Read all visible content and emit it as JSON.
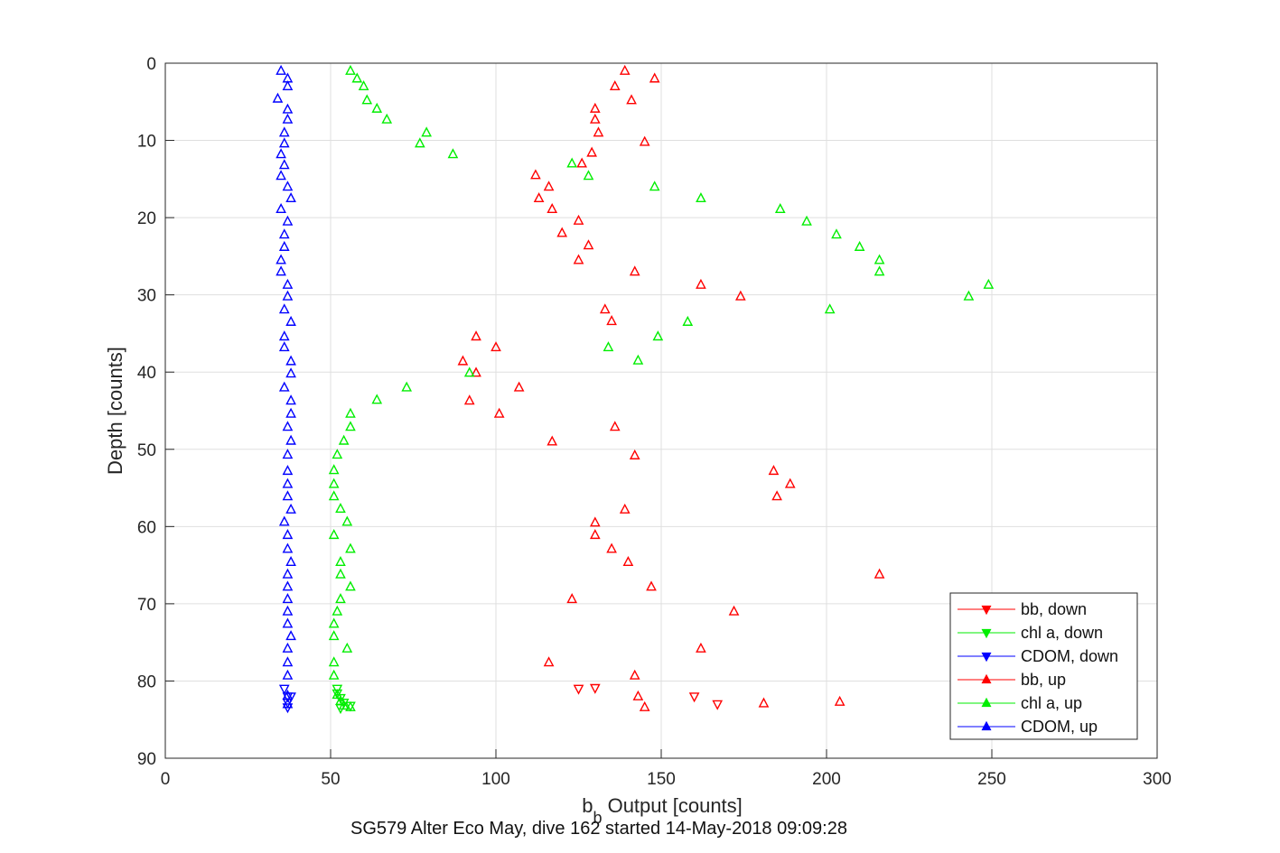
{
  "chart_data": {
    "type": "scatter",
    "xlabel_main": "b",
    "xlabel_sub": "b",
    "xlabel_rest": " Output [counts]",
    "ylabel": "Depth [counts]",
    "caption": "SG579 Alter Eco May, dive 162 started 14-May-2018 09:09:28",
    "xlim": [
      0,
      300
    ],
    "ylim": [
      0,
      90
    ],
    "y_reversed": true,
    "grid": true,
    "legend_position": "bottom-right",
    "x_ticks": [
      0,
      50,
      100,
      150,
      200,
      250,
      300
    ],
    "y_ticks": [
      0,
      10,
      20,
      30,
      40,
      50,
      60,
      70,
      80,
      90
    ],
    "series": [
      {
        "name": "bb, down",
        "color": "#ff0000",
        "marker": "triangle-down",
        "points": [
          [
            125,
            81.0
          ],
          [
            130,
            80.9
          ],
          [
            160,
            82.0
          ],
          [
            167,
            83.0
          ]
        ]
      },
      {
        "name": "chl a, down",
        "color": "#00ee00",
        "marker": "triangle-down",
        "points": [
          [
            52,
            81.0
          ],
          [
            52,
            81.6
          ],
          [
            53,
            82.2
          ],
          [
            54,
            82.8
          ],
          [
            56,
            83.2
          ],
          [
            53,
            83.5
          ]
        ]
      },
      {
        "name": "CDOM, down",
        "color": "#0000ff",
        "marker": "triangle-down",
        "points": [
          [
            36,
            81.0
          ],
          [
            37,
            82.0
          ],
          [
            38,
            82.0
          ],
          [
            37,
            82.8
          ],
          [
            37,
            83.4
          ]
        ]
      },
      {
        "name": "bb, up",
        "color": "#ff0000",
        "marker": "triangle-up",
        "points": [
          [
            139,
            1.0
          ],
          [
            148,
            2.0
          ],
          [
            136,
            3.0
          ],
          [
            141,
            4.8
          ],
          [
            130,
            5.9
          ],
          [
            130,
            7.3
          ],
          [
            131,
            9.0
          ],
          [
            145,
            10.2
          ],
          [
            129,
            11.6
          ],
          [
            126,
            13.0
          ],
          [
            112,
            14.5
          ],
          [
            116,
            16.0
          ],
          [
            113,
            17.5
          ],
          [
            117,
            18.9
          ],
          [
            125,
            20.4
          ],
          [
            120,
            22.0
          ],
          [
            128,
            23.6
          ],
          [
            125,
            25.5
          ],
          [
            142,
            27.0
          ],
          [
            162,
            28.7
          ],
          [
            174,
            30.2
          ],
          [
            133,
            31.9
          ],
          [
            135,
            33.4
          ],
          [
            94,
            35.4
          ],
          [
            100,
            36.8
          ],
          [
            90,
            38.6
          ],
          [
            94,
            40.1
          ],
          [
            107,
            42.0
          ],
          [
            92,
            43.7
          ],
          [
            101,
            45.4
          ],
          [
            136,
            47.1
          ],
          [
            117,
            49.0
          ],
          [
            142,
            50.8
          ],
          [
            184,
            52.8
          ],
          [
            189,
            54.5
          ],
          [
            185,
            56.1
          ],
          [
            139,
            57.8
          ],
          [
            130,
            59.5
          ],
          [
            130,
            61.1
          ],
          [
            135,
            62.9
          ],
          [
            140,
            64.6
          ],
          [
            216,
            66.2
          ],
          [
            147,
            67.8
          ],
          [
            123,
            69.4
          ],
          [
            172,
            71.0
          ],
          [
            162,
            75.8
          ],
          [
            116,
            77.6
          ],
          [
            142,
            79.3
          ],
          [
            143,
            82.0
          ],
          [
            204,
            82.7
          ],
          [
            181,
            82.9
          ],
          [
            145,
            83.4
          ]
        ]
      },
      {
        "name": "chl a, up",
        "color": "#00ee00",
        "marker": "triangle-up",
        "points": [
          [
            56,
            1.0
          ],
          [
            58,
            2.0
          ],
          [
            60,
            3.0
          ],
          [
            61,
            4.8
          ],
          [
            64,
            5.9
          ],
          [
            67,
            7.3
          ],
          [
            79,
            9.0
          ],
          [
            77,
            10.4
          ],
          [
            87,
            11.8
          ],
          [
            123,
            13.0
          ],
          [
            128,
            14.6
          ],
          [
            148,
            16.0
          ],
          [
            162,
            17.5
          ],
          [
            186,
            18.9
          ],
          [
            194,
            20.5
          ],
          [
            203,
            22.2
          ],
          [
            210,
            23.8
          ],
          [
            216,
            25.5
          ],
          [
            216,
            27.0
          ],
          [
            249,
            28.7
          ],
          [
            243,
            30.2
          ],
          [
            201,
            31.9
          ],
          [
            158,
            33.5
          ],
          [
            149,
            35.4
          ],
          [
            134,
            36.8
          ],
          [
            143,
            38.5
          ],
          [
            92,
            40.1
          ],
          [
            73,
            42.0
          ],
          [
            64,
            43.6
          ],
          [
            56,
            45.4
          ],
          [
            56,
            47.1
          ],
          [
            54,
            48.9
          ],
          [
            52,
            50.7
          ],
          [
            51,
            52.7
          ],
          [
            51,
            54.5
          ],
          [
            51,
            56.1
          ],
          [
            53,
            57.7
          ],
          [
            55,
            59.4
          ],
          [
            51,
            61.1
          ],
          [
            56,
            62.9
          ],
          [
            53,
            64.6
          ],
          [
            53,
            66.2
          ],
          [
            56,
            67.8
          ],
          [
            53,
            69.4
          ],
          [
            52,
            71.0
          ],
          [
            51,
            72.6
          ],
          [
            51,
            74.2
          ],
          [
            55,
            75.8
          ],
          [
            51,
            77.6
          ],
          [
            51,
            79.3
          ],
          [
            52,
            81.8
          ],
          [
            53,
            82.6
          ],
          [
            54,
            83.2
          ],
          [
            56,
            83.4
          ]
        ]
      },
      {
        "name": "CDOM, up",
        "color": "#0000ff",
        "marker": "triangle-up",
        "points": [
          [
            35,
            1.0
          ],
          [
            37,
            2.0
          ],
          [
            37,
            3.0
          ],
          [
            34,
            4.6
          ],
          [
            37,
            6.0
          ],
          [
            37,
            7.3
          ],
          [
            36,
            9.0
          ],
          [
            36,
            10.4
          ],
          [
            35,
            11.8
          ],
          [
            36,
            13.2
          ],
          [
            35,
            14.6
          ],
          [
            37,
            16.0
          ],
          [
            38,
            17.5
          ],
          [
            35,
            18.9
          ],
          [
            37,
            20.5
          ],
          [
            36,
            22.2
          ],
          [
            36,
            23.8
          ],
          [
            35,
            25.5
          ],
          [
            35,
            27.0
          ],
          [
            37,
            28.7
          ],
          [
            37,
            30.2
          ],
          [
            36,
            31.9
          ],
          [
            38,
            33.5
          ],
          [
            36,
            35.4
          ],
          [
            36,
            36.8
          ],
          [
            38,
            38.6
          ],
          [
            38,
            40.2
          ],
          [
            36,
            42.0
          ],
          [
            38,
            43.7
          ],
          [
            38,
            45.4
          ],
          [
            37,
            47.1
          ],
          [
            38,
            48.9
          ],
          [
            37,
            50.7
          ],
          [
            37,
            52.8
          ],
          [
            37,
            54.5
          ],
          [
            37,
            56.1
          ],
          [
            38,
            57.8
          ],
          [
            36,
            59.4
          ],
          [
            37,
            61.1
          ],
          [
            37,
            62.9
          ],
          [
            38,
            64.6
          ],
          [
            37,
            66.2
          ],
          [
            37,
            67.8
          ],
          [
            37,
            69.4
          ],
          [
            37,
            71.0
          ],
          [
            37,
            72.6
          ],
          [
            38,
            74.2
          ],
          [
            37,
            75.8
          ],
          [
            37,
            77.6
          ],
          [
            37,
            79.3
          ],
          [
            37,
            81.9
          ],
          [
            37,
            83.0
          ]
        ]
      }
    ]
  }
}
